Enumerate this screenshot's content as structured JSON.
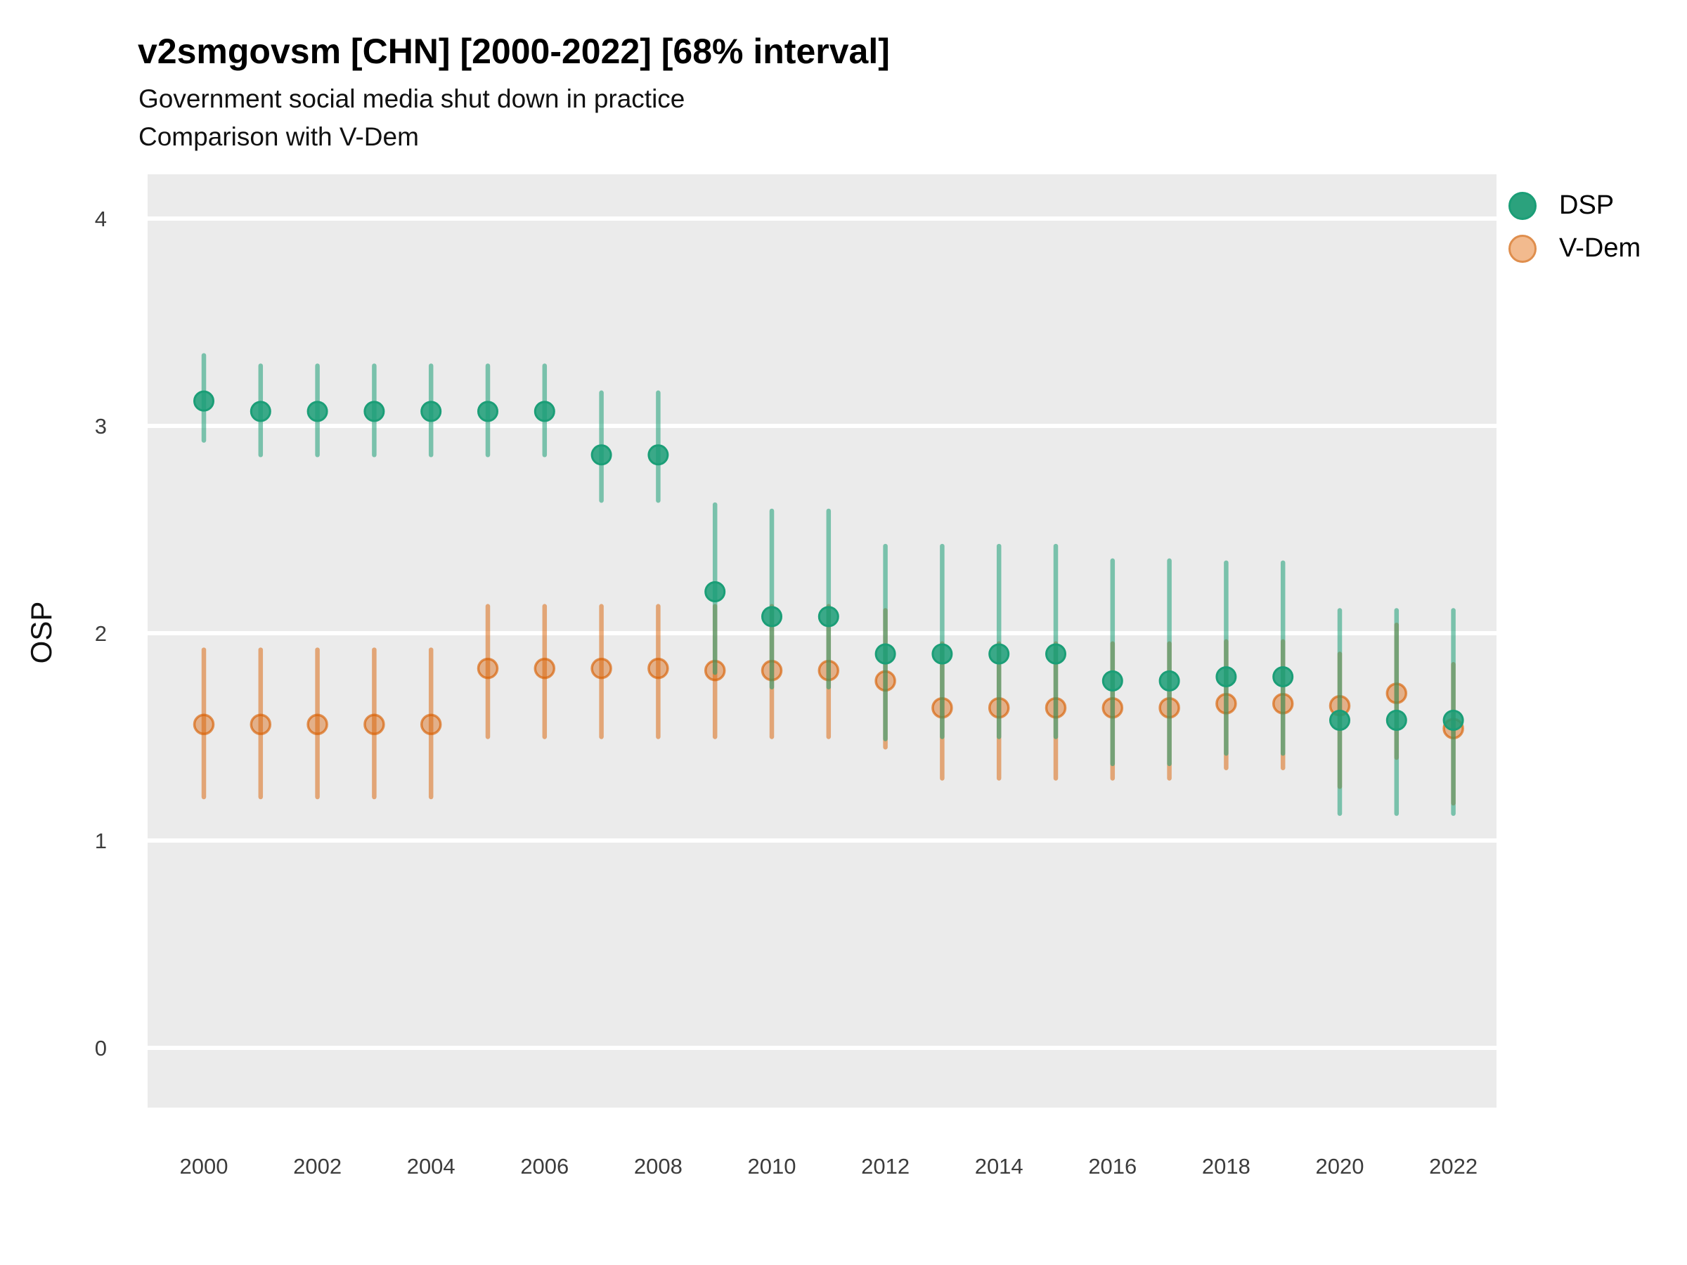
{
  "title": "v2smgovsm [CHN] [2000-2022] [68% interval]",
  "subtitle_line1": "Government social media shut down in practice",
  "subtitle_line2": "Comparison with V-Dem",
  "y_axis": {
    "label": "OSP",
    "ticks": [
      0,
      1,
      2,
      3,
      4
    ]
  },
  "x_axis": {
    "ticks": [
      2000,
      2002,
      2004,
      2006,
      2008,
      2010,
      2012,
      2014,
      2016,
      2018,
      2020,
      2022
    ]
  },
  "legend": {
    "items": [
      {
        "label": "DSP",
        "color": "#1B9E77"
      },
      {
        "label": "V-Dem",
        "color": "#D95F02"
      }
    ]
  },
  "colors": {
    "panel_background": "#EBEBEB",
    "gridline": "#FFFFFF",
    "dsp_green": "#1B9E77",
    "vdem_orange": "#D95F02",
    "text": "#000000",
    "tick_text": "#3C3C3C"
  },
  "chart_data": {
    "type": "pointrange",
    "title": "v2smgovsm [CHN] [2000-2022] [68% interval]",
    "subtitle": "Government social media shut down in practice — Comparison with V-Dem",
    "xlabel": "",
    "ylabel": "OSP",
    "ylim": [
      -0.29,
      4.19
    ],
    "xlim": [
      1999,
      2023
    ],
    "grid": "major-horizontal-white-on-gray",
    "legend_position": "right-top",
    "interval_level": "68%",
    "x": [
      2000,
      2001,
      2002,
      2003,
      2004,
      2005,
      2006,
      2007,
      2008,
      2009,
      2010,
      2011,
      2012,
      2013,
      2014,
      2015,
      2016,
      2017,
      2018,
      2019,
      2020,
      2021,
      2022
    ],
    "series": [
      {
        "name": "V-Dem",
        "color": "#D95F02",
        "points": [
          1.56,
          1.56,
          1.56,
          1.56,
          1.56,
          1.83,
          1.83,
          1.83,
          1.83,
          1.82,
          1.82,
          1.82,
          1.77,
          1.64,
          1.64,
          1.64,
          1.64,
          1.64,
          1.66,
          1.66,
          1.65,
          1.71,
          1.54
        ],
        "lower": [
          1.21,
          1.21,
          1.21,
          1.21,
          1.21,
          1.5,
          1.5,
          1.5,
          1.5,
          1.5,
          1.5,
          1.5,
          1.45,
          1.3,
          1.3,
          1.3,
          1.3,
          1.3,
          1.35,
          1.35,
          1.26,
          1.4,
          1.18
        ],
        "upper": [
          1.92,
          1.92,
          1.92,
          1.92,
          1.92,
          2.13,
          2.13,
          2.13,
          2.13,
          2.13,
          2.13,
          2.13,
          2.11,
          1.95,
          1.95,
          1.95,
          1.95,
          1.95,
          1.96,
          1.96,
          1.9,
          2.04,
          1.85
        ]
      },
      {
        "name": "DSP",
        "color": "#1B9E77",
        "points": [
          3.12,
          3.07,
          3.07,
          3.07,
          3.07,
          3.07,
          3.07,
          2.86,
          2.86,
          2.2,
          2.08,
          2.08,
          1.9,
          1.9,
          1.9,
          1.9,
          1.77,
          1.77,
          1.79,
          1.79,
          1.58,
          1.58,
          1.58
        ],
        "lower": [
          2.93,
          2.86,
          2.86,
          2.86,
          2.86,
          2.86,
          2.86,
          2.64,
          2.64,
          1.81,
          1.74,
          1.74,
          1.49,
          1.5,
          1.5,
          1.5,
          1.37,
          1.37,
          1.42,
          1.42,
          1.13,
          1.13,
          1.13
        ],
        "upper": [
          3.34,
          3.29,
          3.29,
          3.29,
          3.29,
          3.29,
          3.29,
          3.16,
          3.16,
          2.62,
          2.59,
          2.59,
          2.42,
          2.42,
          2.42,
          2.42,
          2.35,
          2.35,
          2.34,
          2.34,
          2.11,
          2.11,
          2.11
        ]
      }
    ]
  }
}
